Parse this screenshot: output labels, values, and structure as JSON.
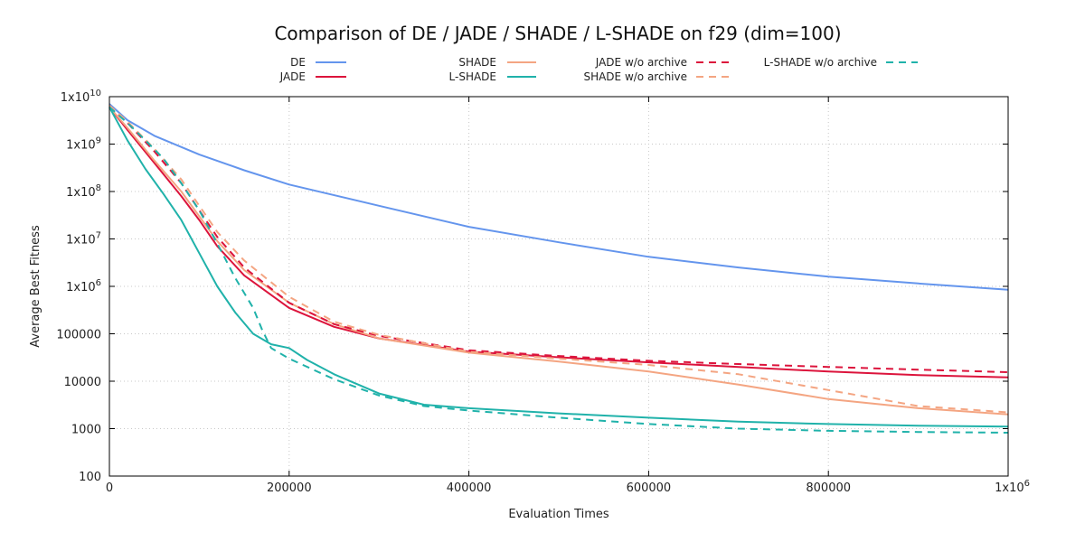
{
  "chart_data": {
    "type": "line",
    "title": "Comparison of DE / JADE / SHADE / L-SHADE on f29 (dim=100)",
    "xlabel": "Evaluation Times",
    "ylabel": "Average Best Fitness",
    "yscale": "log",
    "xlim": [
      0,
      1000000
    ],
    "ylim": [
      100,
      10000000000
    ],
    "grid": true,
    "legend_position": "top",
    "x_ticks": [
      {
        "value": 0,
        "label": "0"
      },
      {
        "value": 200000,
        "label": "200000"
      },
      {
        "value": 400000,
        "label": "400000"
      },
      {
        "value": 600000,
        "label": "600000"
      },
      {
        "value": 800000,
        "label": "800000"
      },
      {
        "value": 1000000,
        "label": "1x10",
        "sup": "6"
      }
    ],
    "y_ticks": [
      {
        "value": 100,
        "label": "100"
      },
      {
        "value": 1000,
        "label": "1000"
      },
      {
        "value": 10000,
        "label": "10000"
      },
      {
        "value": 100000,
        "label": "100000"
      },
      {
        "value": 1000000,
        "label": "1x10",
        "sup": "6"
      },
      {
        "value": 10000000,
        "label": "1x10",
        "sup": "7"
      },
      {
        "value": 100000000,
        "label": "1x10",
        "sup": "8"
      },
      {
        "value": 1000000000,
        "label": "1x10",
        "sup": "9"
      },
      {
        "value": 10000000000,
        "label": "1x10",
        "sup": "10"
      }
    ],
    "series": [
      {
        "name": "DE",
        "color": "#6495ed",
        "dash": false,
        "x": [
          0,
          20000,
          50000,
          100000,
          150000,
          200000,
          300000,
          400000,
          500000,
          600000,
          700000,
          800000,
          900000,
          1000000
        ],
        "y": [
          7000000000,
          3200000000,
          1500000000,
          600000000,
          280000000,
          140000000,
          50000000,
          18000000,
          8500000,
          4200000,
          2500000,
          1600000,
          1150000,
          850000
        ]
      },
      {
        "name": "JADE",
        "color": "#dc143c",
        "dash": false,
        "x": [
          0,
          20000,
          50000,
          80000,
          100000,
          120000,
          150000,
          200000,
          250000,
          300000,
          400000,
          500000,
          600000,
          700000,
          800000,
          900000,
          1000000
        ],
        "y": [
          6000000000,
          2000000000,
          400000000,
          80000000,
          25000000,
          7000000,
          1700000,
          350000,
          140000,
          80000,
          42000,
          32000,
          25000,
          20000,
          16000,
          13500,
          12000
        ]
      },
      {
        "name": "SHADE",
        "color": "#f4a582",
        "dash": false,
        "x": [
          0,
          20000,
          50000,
          80000,
          100000,
          120000,
          150000,
          200000,
          250000,
          300000,
          400000,
          500000,
          600000,
          700000,
          800000,
          900000,
          1000000
        ],
        "y": [
          6000000000,
          2200000000,
          450000000,
          100000000,
          30000000,
          9000000,
          2200000,
          450000,
          160000,
          80000,
          40000,
          26000,
          16000,
          8500,
          4200,
          2700,
          2000
        ]
      },
      {
        "name": "L-SHADE",
        "color": "#20b2aa",
        "dash": false,
        "x": [
          0,
          20000,
          40000,
          60000,
          80000,
          100000,
          120000,
          140000,
          160000,
          180000,
          200000,
          220000,
          250000,
          300000,
          350000,
          400000,
          500000,
          600000,
          700000,
          800000,
          900000,
          1000000
        ],
        "y": [
          6000000000,
          1200000000,
          300000000,
          90000000,
          25000000,
          5000000,
          1000000,
          280000,
          100000,
          60000,
          50000,
          28000,
          14000,
          5500,
          3200,
          2700,
          2100,
          1700,
          1400,
          1250,
          1150,
          1100
        ]
      },
      {
        "name": "JADE w/o archive",
        "color": "#dc143c",
        "dash": true,
        "x": [
          0,
          20000,
          50000,
          80000,
          100000,
          120000,
          150000,
          200000,
          250000,
          300000,
          400000,
          500000,
          600000,
          700000,
          800000,
          900000,
          1000000
        ],
        "y": [
          6500000000,
          2800000000,
          700000000,
          150000000,
          40000000,
          11000000,
          2500000,
          450000,
          160000,
          90000,
          45000,
          34000,
          27000,
          23000,
          20000,
          17500,
          15500
        ]
      },
      {
        "name": "SHADE w/o archive",
        "color": "#f4a582",
        "dash": true,
        "x": [
          0,
          20000,
          50000,
          80000,
          100000,
          120000,
          150000,
          200000,
          250000,
          300000,
          400000,
          500000,
          600000,
          700000,
          800000,
          900000,
          1000000
        ],
        "y": [
          6500000000,
          3000000000,
          800000000,
          180000000,
          50000000,
          14000000,
          3500000,
          600000,
          180000,
          95000,
          42000,
          30000,
          22000,
          14000,
          6500,
          3000,
          2200
        ]
      },
      {
        "name": "L-SHADE w/o archive",
        "color": "#20b2aa",
        "dash": true,
        "x": [
          0,
          20000,
          40000,
          60000,
          80000,
          100000,
          120000,
          140000,
          160000,
          170000,
          180000,
          200000,
          250000,
          300000,
          350000,
          400000,
          500000,
          600000,
          700000,
          800000,
          900000,
          1000000
        ],
        "y": [
          6000000000,
          2800000000,
          1200000000,
          500000000,
          150000000,
          40000000,
          8000000,
          1500000,
          350000,
          120000,
          50000,
          30000,
          11000,
          5000,
          3000,
          2400,
          1700,
          1250,
          1000,
          900,
          850,
          820
        ]
      }
    ]
  }
}
